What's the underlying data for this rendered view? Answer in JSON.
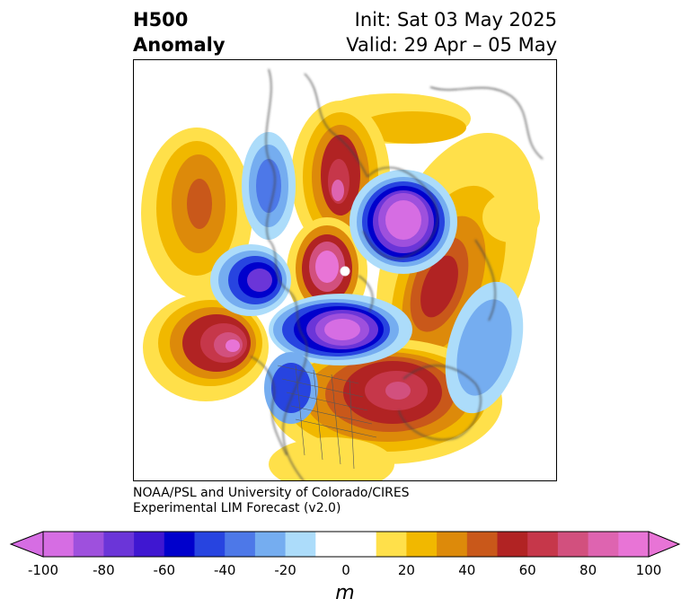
{
  "title": {
    "left_line1": "H500",
    "left_line2": "Anomaly",
    "right_line1": "Init: Sat 03 May 2025",
    "right_line2": "Valid: 29 Apr – 05 May"
  },
  "credit": {
    "line1": "NOAA/PSL and University of Colorado/CIRES",
    "line2": "Experimental LIM Forecast (v2.0)"
  },
  "colorbar": {
    "unit": "m",
    "ticks": [
      "-100",
      "-80",
      "-60",
      "-40",
      "-20",
      "0",
      "20",
      "40",
      "60",
      "80",
      "100"
    ],
    "colors": [
      "#d66de3",
      "#9e50dd",
      "#6b35d8",
      "#3f17d1",
      "#0000cc",
      "#2744e0",
      "#4d78e8",
      "#75adf0",
      "#acdcfa",
      "#ffffff",
      "#ffffff",
      "#ffe04a",
      "#f1b800",
      "#dd8a0a",
      "#c9581a",
      "#b12323",
      "#c6374a",
      "#d2507e",
      "#de64b0",
      "#e874d6"
    ],
    "under_color": "#d66de3",
    "over_color": "#e874d6"
  }
}
